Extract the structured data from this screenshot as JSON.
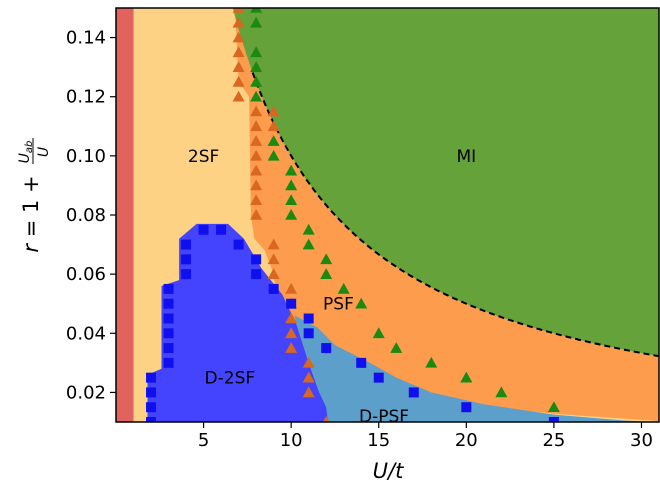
{
  "chart_data": {
    "type": "phase-diagram",
    "xlabel": "U/t",
    "ylabel": "r = 1 + U_ab / U",
    "ylabel_parts": {
      "r": "r",
      "eq": " = 1 + ",
      "num": "U",
      "num_sub": "ab",
      "den": "U"
    },
    "xlim": [
      0,
      31
    ],
    "ylim": [
      0.01,
      0.15
    ],
    "xticks": [
      5,
      10,
      15,
      20,
      25,
      30
    ],
    "yticks": [
      0.02,
      0.04,
      0.06,
      0.08,
      0.1,
      0.12,
      0.14
    ],
    "ytick_labels": [
      "0.02",
      "0.04",
      "0.06",
      "0.08",
      "0.10",
      "0.12",
      "0.14"
    ],
    "grid": false,
    "colors": {
      "red": "#e2625e",
      "2SF": "#fdd285",
      "PSF": "#fe9c4e",
      "MI": "#65a33a",
      "D-2SF": "#4444fe",
      "D-PSF": "#5d9fcb",
      "orange_marker": "#d8671f",
      "green_marker": "#1a8a10",
      "blue_marker": "#1010ee",
      "dashed": "#000000"
    },
    "region_labels": [
      {
        "text": "2SF",
        "x": 5.0,
        "y": 0.1
      },
      {
        "text": "MI",
        "x": 20.0,
        "y": 0.1
      },
      {
        "text": "PSF",
        "x": 12.7,
        "y": 0.05
      },
      {
        "text": "D-2SF",
        "x": 6.5,
        "y": 0.025
      },
      {
        "text": "D-PSF",
        "x": 15.3,
        "y": 0.012
      }
    ],
    "red_region_xmax": 1.0,
    "dashed_curve": {
      "type": "hyperbola",
      "c": 1.0
    },
    "orange_triangles": [
      [
        7.0,
        0.15
      ],
      [
        7.0,
        0.145
      ],
      [
        7.0,
        0.14
      ],
      [
        7.0,
        0.135
      ],
      [
        7.0,
        0.13
      ],
      [
        7.0,
        0.125
      ],
      [
        7.0,
        0.12
      ],
      [
        8.0,
        0.115
      ],
      [
        8.0,
        0.11
      ],
      [
        8.0,
        0.105
      ],
      [
        8.0,
        0.1
      ],
      [
        8.0,
        0.095
      ],
      [
        8.0,
        0.09
      ],
      [
        8.0,
        0.085
      ],
      [
        8.0,
        0.08
      ],
      [
        9.0,
        0.115
      ],
      [
        9.0,
        0.11
      ],
      [
        9.0,
        0.07
      ],
      [
        9.0,
        0.065
      ],
      [
        9.0,
        0.06
      ],
      [
        10.0,
        0.055
      ],
      [
        10.0,
        0.05
      ],
      [
        10.0,
        0.045
      ],
      [
        10.0,
        0.04
      ],
      [
        10.0,
        0.035
      ],
      [
        11.0,
        0.03
      ],
      [
        11.0,
        0.025
      ],
      [
        11.0,
        0.02
      ],
      [
        12.0,
        0.01
      ]
    ],
    "green_triangles": [
      [
        8.0,
        0.15
      ],
      [
        8.0,
        0.145
      ],
      [
        8.0,
        0.135
      ],
      [
        8.0,
        0.13
      ],
      [
        8.0,
        0.125
      ],
      [
        8.0,
        0.12
      ],
      [
        9.0,
        0.105
      ],
      [
        9.0,
        0.1
      ],
      [
        10.0,
        0.095
      ],
      [
        10.0,
        0.09
      ],
      [
        10.0,
        0.085
      ],
      [
        10.0,
        0.08
      ],
      [
        11.0,
        0.075
      ],
      [
        11.0,
        0.07
      ],
      [
        12.0,
        0.065
      ],
      [
        12.0,
        0.06
      ],
      [
        13.0,
        0.055
      ],
      [
        14.0,
        0.05
      ],
      [
        15.0,
        0.04
      ],
      [
        16.0,
        0.035
      ],
      [
        18.0,
        0.03
      ],
      [
        20.0,
        0.025
      ],
      [
        22.0,
        0.02
      ],
      [
        25.0,
        0.015
      ]
    ],
    "blue_squares": [
      [
        2.0,
        0.025
      ],
      [
        2.0,
        0.02
      ],
      [
        2.0,
        0.015
      ],
      [
        2.0,
        0.01
      ],
      [
        3.0,
        0.055
      ],
      [
        3.0,
        0.05
      ],
      [
        3.0,
        0.045
      ],
      [
        3.0,
        0.04
      ],
      [
        3.0,
        0.035
      ],
      [
        3.0,
        0.03
      ],
      [
        4.0,
        0.07
      ],
      [
        4.0,
        0.065
      ],
      [
        4.0,
        0.06
      ],
      [
        5.0,
        0.075
      ],
      [
        6.0,
        0.075
      ],
      [
        7.0,
        0.07
      ],
      [
        8.0,
        0.065
      ],
      [
        8.0,
        0.06
      ],
      [
        9.0,
        0.055
      ],
      [
        10.0,
        0.05
      ],
      [
        11.0,
        0.045
      ],
      [
        11.0,
        0.04
      ],
      [
        12.0,
        0.035
      ],
      [
        14.0,
        0.03
      ],
      [
        15.0,
        0.025
      ],
      [
        17.0,
        0.02
      ],
      [
        20.0,
        0.015
      ],
      [
        25.0,
        0.01
      ]
    ],
    "PSF_boundary": [
      [
        31,
        0.0103
      ],
      [
        25,
        0.0128
      ],
      [
        20,
        0.016
      ],
      [
        17,
        0.0188
      ],
      [
        15,
        0.0213
      ],
      [
        13,
        0.0247
      ],
      [
        12,
        0.027
      ],
      [
        11,
        0.0296
      ],
      [
        10,
        0.0325
      ],
      [
        9.5,
        0.035
      ],
      [
        9.0,
        0.06
      ],
      [
        8.5,
        0.068
      ],
      [
        7.9,
        0.072
      ],
      [
        7.7,
        0.08
      ],
      [
        7.6,
        0.12
      ],
      [
        7.0,
        0.125
      ],
      [
        6.8,
        0.15
      ]
    ],
    "D2SF_boundary": [
      [
        1.8,
        0.01
      ],
      [
        1.8,
        0.026
      ],
      [
        2.6,
        0.028
      ],
      [
        2.6,
        0.056
      ],
      [
        3.6,
        0.058
      ],
      [
        3.6,
        0.072
      ],
      [
        4.6,
        0.077
      ],
      [
        6.4,
        0.077
      ],
      [
        7.3,
        0.072
      ],
      [
        8.3,
        0.062
      ],
      [
        9.5,
        0.053
      ],
      [
        10.3,
        0.043
      ],
      [
        11.0,
        0.03
      ],
      [
        11.6,
        0.02
      ],
      [
        12.0,
        0.015
      ],
      [
        12.1,
        0.01
      ]
    ],
    "DPSF_boundary": [
      [
        12.1,
        0.01
      ],
      [
        11.6,
        0.02
      ],
      [
        11.0,
        0.03
      ],
      [
        10.3,
        0.043
      ],
      [
        10.2,
        0.046
      ],
      [
        11.5,
        0.042
      ],
      [
        12.5,
        0.036
      ],
      [
        14.5,
        0.03
      ],
      [
        16.0,
        0.025
      ],
      [
        18.0,
        0.02
      ],
      [
        21.0,
        0.016
      ],
      [
        25.0,
        0.0125
      ],
      [
        29.0,
        0.0105
      ],
      [
        31.0,
        0.01
      ]
    ]
  }
}
